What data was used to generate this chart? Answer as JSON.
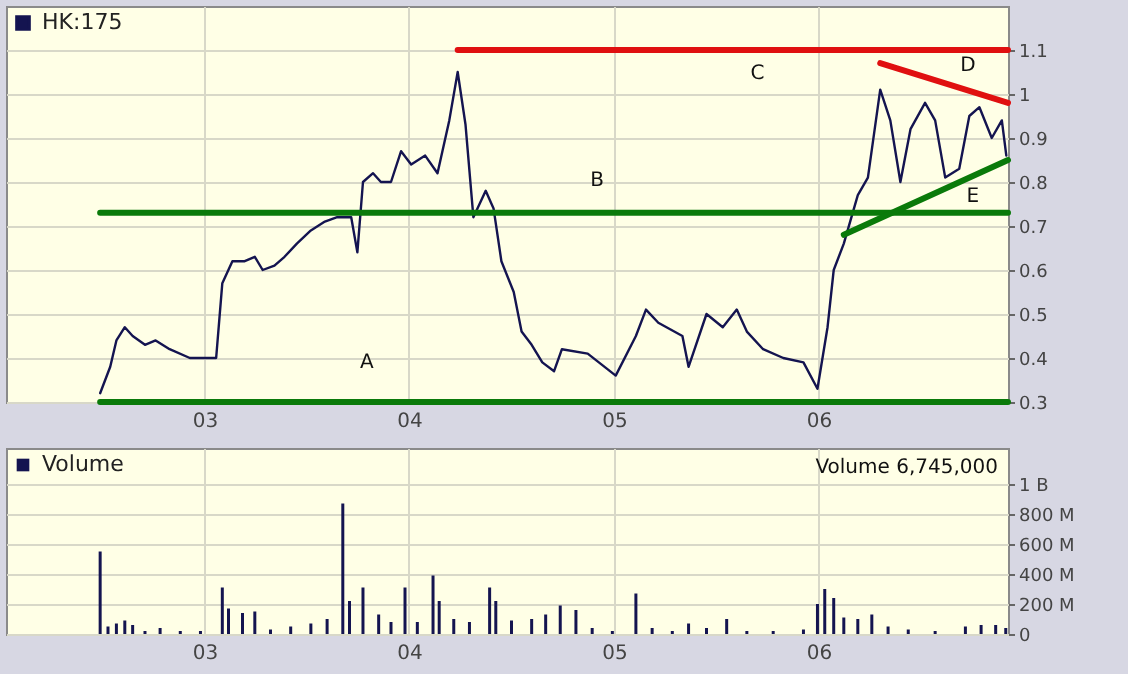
{
  "chart_data": [
    {
      "type": "line",
      "legend": "top left",
      "grid": true,
      "xlim": [
        "2002-01-12",
        "2006-12-05"
      ],
      "xticks": [
        {
          "value": "2003-01-01",
          "label": "03"
        },
        {
          "value": "2004-01-01",
          "label": "04"
        },
        {
          "value": "2005-01-01",
          "label": "05"
        },
        {
          "value": "2006-01-01",
          "label": "06"
        }
      ],
      "ylim": [
        0.3,
        1.2
      ],
      "yticks": [
        0.3,
        0.4,
        0.5,
        0.6,
        0.7,
        0.8,
        0.9,
        1,
        1.1
      ],
      "series": [
        {
          "name": "HK:175",
          "color": "#141450",
          "x": [
            "2002-06-29",
            "2002-07-17",
            "2002-07-28",
            "2002-08-12",
            "2002-08-26",
            "2002-09-17",
            "2002-10-06",
            "2002-10-31",
            "2002-12-06",
            "2003-01-22",
            "2003-02-02",
            "2003-02-20",
            "2003-03-14",
            "2003-04-01",
            "2003-04-15",
            "2003-05-06",
            "2003-05-24",
            "2003-06-15",
            "2003-07-10",
            "2003-08-04",
            "2003-08-26",
            "2003-09-20",
            "2003-10-01",
            "2003-10-11",
            "2003-10-29",
            "2003-11-12",
            "2003-11-30",
            "2003-12-18",
            "2004-01-05",
            "2004-01-30",
            "2004-02-21",
            "2004-03-13",
            "2004-03-28",
            "2004-04-11",
            "2004-04-25",
            "2004-05-17",
            "2004-05-31",
            "2004-06-14",
            "2004-07-06",
            "2004-07-20",
            "2004-08-07",
            "2004-08-26",
            "2004-09-16",
            "2004-09-30",
            "2004-11-15",
            "2005-01-04",
            "2005-02-09",
            "2005-02-27",
            "2005-03-21",
            "2005-05-03",
            "2005-05-14",
            "2005-06-15",
            "2005-07-14",
            "2005-08-08",
            "2005-08-26",
            "2005-09-24",
            "2005-10-30",
            "2005-12-05",
            "2005-12-30",
            "2006-01-17",
            "2006-01-28",
            "2006-02-15",
            "2006-03-12",
            "2006-03-30",
            "2006-04-21",
            "2006-05-09",
            "2006-05-27",
            "2006-06-14",
            "2006-07-10",
            "2006-07-28",
            "2006-08-15",
            "2006-09-09",
            "2006-09-27",
            "2006-10-15",
            "2006-11-06",
            "2006-11-24",
            "2006-12-02"
          ],
          "values": [
            0.32,
            0.38,
            0.44,
            0.47,
            0.45,
            0.43,
            0.44,
            0.42,
            0.4,
            0.4,
            0.57,
            0.62,
            0.62,
            0.63,
            0.6,
            0.61,
            0.63,
            0.66,
            0.69,
            0.71,
            0.72,
            0.72,
            0.64,
            0.8,
            0.82,
            0.8,
            0.8,
            0.87,
            0.84,
            0.86,
            0.82,
            0.94,
            1.05,
            0.93,
            0.72,
            0.78,
            0.74,
            0.62,
            0.55,
            0.46,
            0.43,
            0.39,
            0.37,
            0.42,
            0.41,
            0.36,
            0.45,
            0.51,
            0.48,
            0.45,
            0.38,
            0.5,
            0.47,
            0.51,
            0.46,
            0.42,
            0.4,
            0.39,
            0.33,
            0.47,
            0.6,
            0.66,
            0.77,
            0.81,
            1.01,
            0.94,
            0.8,
            0.92,
            0.98,
            0.94,
            0.81,
            0.83,
            0.95,
            0.97,
            0.9,
            0.94,
            0.86
          ]
        },
        {
          "color": "#e01010",
          "x": [
            "2004-03-28",
            "2006-12-05"
          ],
          "values": [
            1.1,
            1.1
          ]
        },
        {
          "color": "#0a7a0a",
          "x": [
            "2002-06-29",
            "2006-12-05"
          ],
          "values": [
            0.73,
            0.73
          ]
        },
        {
          "color": "#0a7a0a",
          "x": [
            "2002-06-29",
            "2006-12-05"
          ],
          "values": [
            0.3,
            0.3
          ]
        },
        {
          "color": "#e01010",
          "x": [
            "2006-04-21",
            "2006-12-05"
          ],
          "values": [
            1.07,
            0.98
          ]
        },
        {
          "color": "#0a7a0a",
          "x": [
            "2006-02-15",
            "2006-12-05"
          ],
          "values": [
            0.68,
            0.85
          ]
        }
      ],
      "annotations": [
        "A",
        "B",
        "C",
        "D",
        "E"
      ]
    },
    {
      "type": "bar",
      "legend": "top left",
      "grid": true,
      "xlim": [
        "2002-01-12",
        "2006-12-05"
      ],
      "xticks": [
        {
          "value": "2003-01-01",
          "label": "03"
        },
        {
          "value": "2004-01-01",
          "label": "04"
        },
        {
          "value": "2005-01-01",
          "label": "05"
        },
        {
          "value": "2006-01-01",
          "label": "06"
        }
      ],
      "ylim": [
        0,
        1240000000
      ],
      "yticks": [
        {
          "value": 0,
          "label": "0"
        },
        {
          "value": 200000000,
          "label": "200 M"
        },
        {
          "value": 400000000,
          "label": "400 M"
        },
        {
          "value": 600000000,
          "label": "600 M"
        },
        {
          "value": 800000000,
          "label": "800 M"
        },
        {
          "value": 1000000000,
          "label": "1 B"
        }
      ],
      "series": [
        {
          "name": "Volume",
          "color": "#141450",
          "x": [
            "2002-06-29",
            "2002-07-13",
            "2002-07-28",
            "2002-08-12",
            "2002-08-26",
            "2002-09-17",
            "2002-10-14",
            "2002-11-19",
            "2002-12-25",
            "2003-02-02",
            "2003-02-13",
            "2003-03-10",
            "2003-04-01",
            "2003-04-29",
            "2003-06-04",
            "2003-07-10",
            "2003-08-08",
            "2003-09-05",
            "2003-09-17",
            "2003-10-11",
            "2003-11-08",
            "2003-11-30",
            "2003-12-25",
            "2004-01-16",
            "2004-02-13",
            "2004-02-24",
            "2004-03-21",
            "2004-04-18",
            "2004-05-24",
            "2004-06-04",
            "2004-07-02",
            "2004-08-07",
            "2004-09-01",
            "2004-09-27",
            "2004-10-25",
            "2004-11-23",
            "2004-12-29",
            "2005-02-09",
            "2005-03-10",
            "2005-04-15",
            "2005-05-14",
            "2005-06-15",
            "2005-07-21",
            "2005-08-26",
            "2005-10-12",
            "2005-12-05",
            "2005-12-30",
            "2006-01-12",
            "2006-01-28",
            "2006-02-15",
            "2006-03-12",
            "2006-04-06",
            "2006-05-05",
            "2006-06-10",
            "2006-07-28",
            "2006-09-20",
            "2006-10-18",
            "2006-11-13",
            "2006-12-01"
          ],
          "values": [
            550000000,
            50000000,
            70000000,
            90000000,
            60000000,
            20000000,
            40000000,
            20000000,
            20000000,
            310000000,
            170000000,
            140000000,
            150000000,
            30000000,
            50000000,
            70000000,
            100000000,
            870000000,
            220000000,
            310000000,
            130000000,
            80000000,
            310000000,
            80000000,
            390000000,
            220000000,
            100000000,
            80000000,
            310000000,
            220000000,
            90000000,
            100000000,
            130000000,
            190000000,
            160000000,
            40000000,
            20000000,
            270000000,
            40000000,
            20000000,
            70000000,
            40000000,
            100000000,
            20000000,
            20000000,
            30000000,
            200000000,
            300000000,
            240000000,
            110000000,
            100000000,
            130000000,
            50000000,
            30000000,
            20000000,
            50000000,
            60000000,
            60000000,
            40000000
          ]
        }
      ],
      "annotations": [
        "Volume 6,745,000"
      ]
    }
  ]
}
